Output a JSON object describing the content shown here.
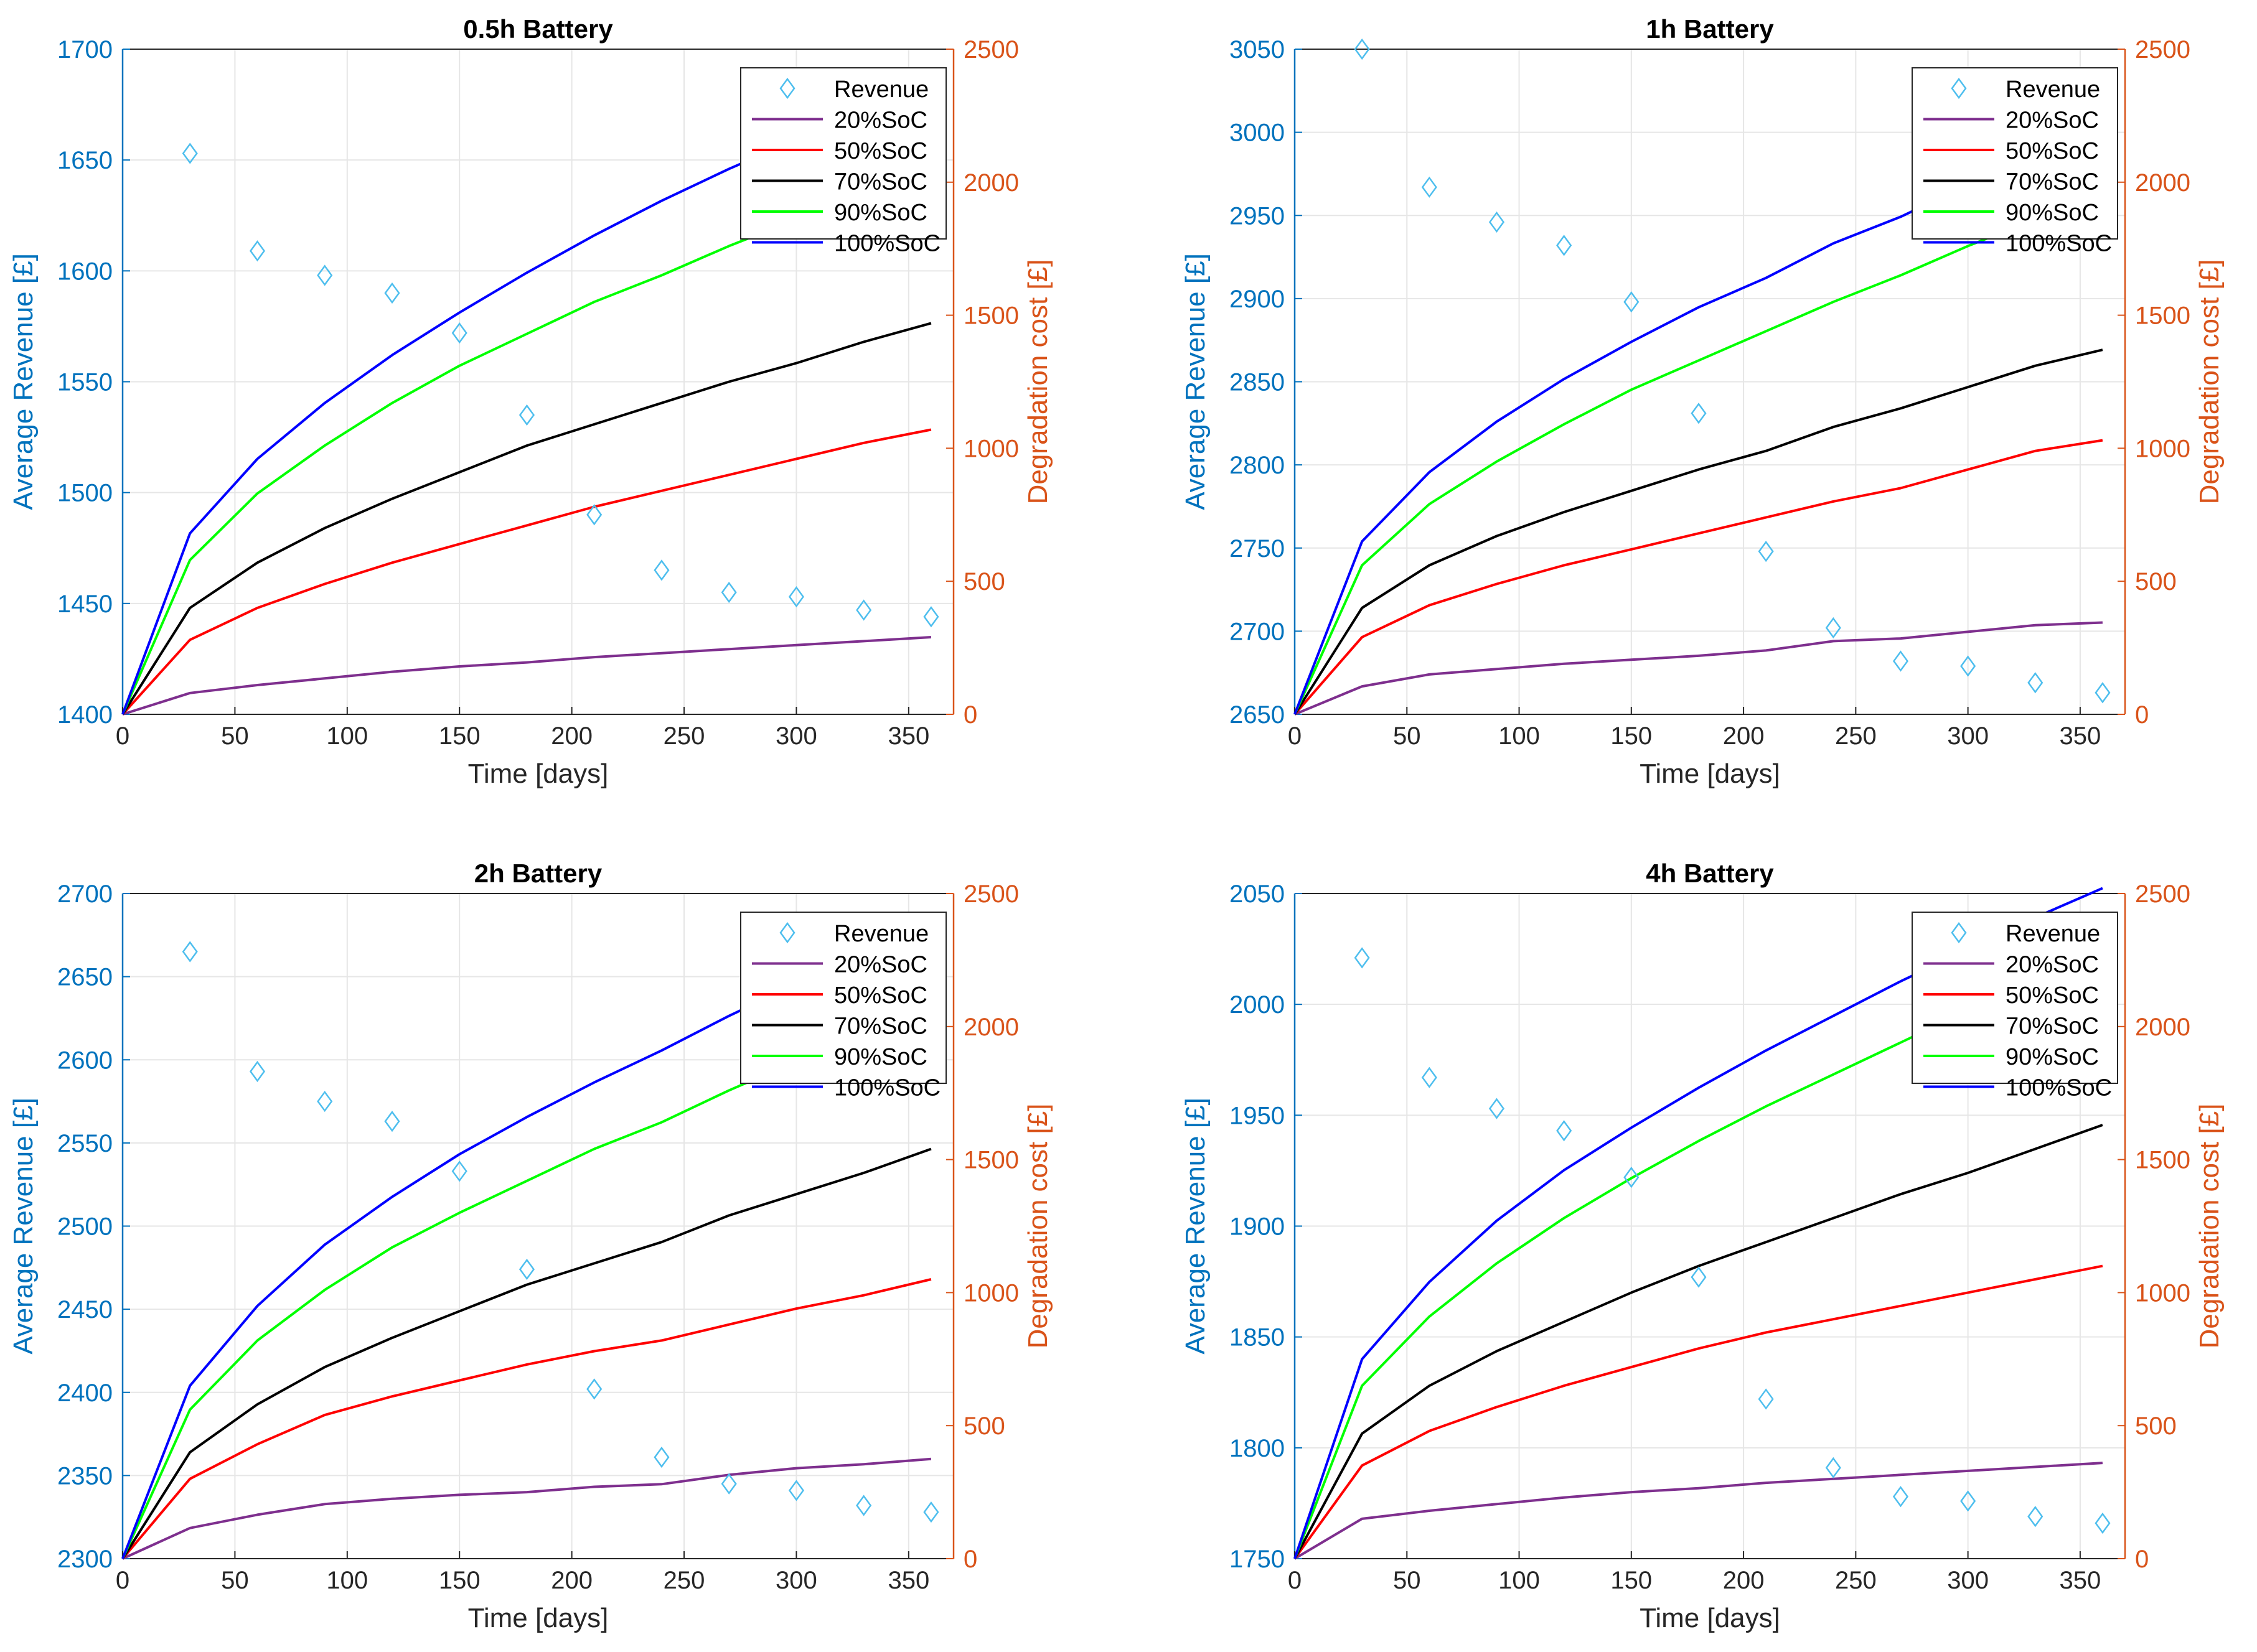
{
  "colors": {
    "left_axis": "#0072BD",
    "right_axis": "#D95319",
    "revenue_marker": "#4DBEEE",
    "grid": "#e6e6e6"
  },
  "chart_data": [
    {
      "type": "line",
      "title": "0.5h Battery",
      "xlabel": "Time [days]",
      "ylabel_left": "Average Revenue [£]",
      "ylabel_right": "Degradation cost [£]",
      "xlim": [
        0,
        370
      ],
      "xticks": [
        0,
        50,
        100,
        150,
        200,
        250,
        300,
        350
      ],
      "ylim_left": [
        1400,
        1700
      ],
      "yticks_left": [
        1400,
        1450,
        1500,
        1550,
        1600,
        1650,
        1700
      ],
      "ylim_right": [
        0,
        2500
      ],
      "yticks_right": [
        0,
        500,
        1000,
        1500,
        2000,
        2500
      ],
      "grid": true,
      "legend_position": "top-right",
      "revenue": {
        "name": "Revenue",
        "marker": "diamond-open",
        "x": [
          30,
          60,
          90,
          120,
          150,
          180,
          210,
          240,
          270,
          300,
          330,
          360
        ],
        "y": [
          1653,
          1609,
          1598,
          1590,
          1572,
          1535,
          1490,
          1465,
          1455,
          1453,
          1447,
          1444
        ]
      },
      "x": [
        0,
        30,
        60,
        90,
        120,
        150,
        180,
        210,
        240,
        270,
        300,
        330,
        360
      ],
      "series": [
        {
          "name": "20%SoC",
          "color": "#7E2F8E",
          "values": [
            0,
            80,
            110,
            135,
            160,
            180,
            195,
            215,
            230,
            245,
            260,
            275,
            290
          ]
        },
        {
          "name": "50%SoC",
          "color": "#FF0000",
          "values": [
            0,
            280,
            400,
            490,
            570,
            640,
            710,
            780,
            840,
            900,
            960,
            1020,
            1070
          ]
        },
        {
          "name": "70%SoC",
          "color": "#000000",
          "values": [
            0,
            400,
            570,
            700,
            810,
            910,
            1010,
            1090,
            1170,
            1250,
            1320,
            1400,
            1470
          ]
        },
        {
          "name": "90%SoC",
          "color": "#00FF00",
          "values": [
            0,
            580,
            830,
            1010,
            1170,
            1310,
            1430,
            1550,
            1650,
            1760,
            1860,
            1950,
            2040
          ]
        },
        {
          "name": "100%SoC",
          "color": "#0000FF",
          "values": [
            0,
            680,
            960,
            1170,
            1350,
            1510,
            1660,
            1800,
            1930,
            2050,
            2160,
            2270,
            2370
          ]
        }
      ]
    },
    {
      "type": "line",
      "title": "1h Battery",
      "xlabel": "Time [days]",
      "ylabel_left": "Average Revenue [£]",
      "ylabel_right": "Degradation cost [£]",
      "xlim": [
        0,
        370
      ],
      "xticks": [
        0,
        50,
        100,
        150,
        200,
        250,
        300,
        350
      ],
      "ylim_left": [
        2650,
        3050
      ],
      "yticks_left": [
        2650,
        2700,
        2750,
        2800,
        2850,
        2900,
        2950,
        3000,
        3050
      ],
      "ylim_right": [
        0,
        2500
      ],
      "yticks_right": [
        0,
        500,
        1000,
        1500,
        2000,
        2500
      ],
      "grid": true,
      "legend_position": "top-right",
      "revenue": {
        "name": "Revenue",
        "marker": "diamond-open",
        "x": [
          30,
          60,
          90,
          120,
          150,
          180,
          210,
          240,
          270,
          300,
          330,
          360
        ],
        "y": [
          3050,
          2967,
          2946,
          2932,
          2898,
          2831,
          2748,
          2702,
          2682,
          2679,
          2669,
          2663
        ]
      },
      "x": [
        0,
        30,
        60,
        90,
        120,
        150,
        180,
        210,
        240,
        270,
        300,
        330,
        360
      ],
      "series": [
        {
          "name": "20%SoC",
          "color": "#7E2F8E",
          "values": [
            0,
            105,
            150,
            170,
            190,
            205,
            220,
            240,
            275,
            285,
            310,
            335,
            345
          ]
        },
        {
          "name": "50%SoC",
          "color": "#FF0000",
          "values": [
            0,
            290,
            410,
            490,
            560,
            620,
            680,
            740,
            800,
            850,
            920,
            990,
            1030
          ]
        },
        {
          "name": "70%SoC",
          "color": "#000000",
          "values": [
            0,
            400,
            560,
            670,
            760,
            840,
            920,
            990,
            1080,
            1150,
            1230,
            1310,
            1370
          ]
        },
        {
          "name": "90%SoC",
          "color": "#00FF00",
          "values": [
            0,
            560,
            790,
            950,
            1090,
            1220,
            1330,
            1440,
            1550,
            1650,
            1760,
            1860,
            1950
          ]
        },
        {
          "name": "100%SoC",
          "color": "#0000FF",
          "values": [
            0,
            650,
            910,
            1100,
            1260,
            1400,
            1530,
            1640,
            1770,
            1870,
            1990,
            2100,
            2200
          ]
        }
      ]
    },
    {
      "type": "line",
      "title": "2h Battery",
      "xlabel": "Time [days]",
      "ylabel_left": "Average Revenue [£]",
      "ylabel_right": "Degradation cost [£]",
      "xlim": [
        0,
        370
      ],
      "xticks": [
        0,
        50,
        100,
        150,
        200,
        250,
        300,
        350
      ],
      "ylim_left": [
        2300,
        2700
      ],
      "yticks_left": [
        2300,
        2350,
        2400,
        2450,
        2500,
        2550,
        2600,
        2650,
        2700
      ],
      "ylim_right": [
        0,
        2500
      ],
      "yticks_right": [
        0,
        500,
        1000,
        1500,
        2000,
        2500
      ],
      "grid": true,
      "legend_position": "top-right",
      "revenue": {
        "name": "Revenue",
        "marker": "diamond-open",
        "x": [
          30,
          60,
          90,
          120,
          150,
          180,
          210,
          240,
          270,
          300,
          330,
          360
        ],
        "y": [
          2665,
          2593,
          2575,
          2563,
          2533,
          2474,
          2402,
          2361,
          2345,
          2341,
          2332,
          2328
        ]
      },
      "x": [
        0,
        30,
        60,
        90,
        120,
        150,
        180,
        210,
        240,
        270,
        300,
        330,
        360
      ],
      "series": [
        {
          "name": "20%SoC",
          "color": "#7E2F8E",
          "values": [
            0,
            115,
            165,
            205,
            225,
            240,
            250,
            270,
            280,
            315,
            340,
            355,
            375
          ]
        },
        {
          "name": "50%SoC",
          "color": "#FF0000",
          "values": [
            0,
            300,
            430,
            540,
            610,
            670,
            730,
            780,
            820,
            880,
            940,
            990,
            1050
          ]
        },
        {
          "name": "70%SoC",
          "color": "#000000",
          "values": [
            0,
            400,
            580,
            720,
            830,
            930,
            1030,
            1110,
            1190,
            1290,
            1370,
            1450,
            1540
          ]
        },
        {
          "name": "90%SoC",
          "color": "#00FF00",
          "values": [
            0,
            560,
            820,
            1010,
            1170,
            1300,
            1420,
            1540,
            1640,
            1760,
            1870,
            1970,
            2080
          ]
        },
        {
          "name": "100%SoC",
          "color": "#0000FF",
          "values": [
            0,
            650,
            950,
            1180,
            1360,
            1520,
            1660,
            1790,
            1910,
            2040,
            2160,
            2270,
            2380
          ]
        }
      ]
    },
    {
      "type": "line",
      "title": "4h Battery",
      "xlabel": "Time [days]",
      "ylabel_left": "Average Revenue [£]",
      "ylabel_right": "Degradation cost [£]",
      "xlim": [
        0,
        370
      ],
      "xticks": [
        0,
        50,
        100,
        150,
        200,
        250,
        300,
        350
      ],
      "ylim_left": [
        1750,
        2050
      ],
      "yticks_left": [
        1750,
        1800,
        1850,
        1900,
        1950,
        2000,
        2050
      ],
      "ylim_right": [
        0,
        2500
      ],
      "yticks_right": [
        0,
        500,
        1000,
        1500,
        2000,
        2500
      ],
      "grid": true,
      "legend_position": "top-right",
      "revenue": {
        "name": "Revenue",
        "marker": "diamond-open",
        "x": [
          30,
          60,
          90,
          120,
          150,
          180,
          210,
          240,
          270,
          300,
          330,
          360
        ],
        "y": [
          2021,
          1967,
          1953,
          1943,
          1922,
          1877,
          1822,
          1791,
          1778,
          1776,
          1769,
          1766
        ]
      },
      "x": [
        0,
        30,
        60,
        90,
        120,
        150,
        180,
        210,
        240,
        270,
        300,
        330,
        360
      ],
      "series": [
        {
          "name": "20%SoC",
          "color": "#7E2F8E",
          "values": [
            0,
            150,
            180,
            205,
            230,
            250,
            265,
            285,
            300,
            315,
            330,
            345,
            360
          ]
        },
        {
          "name": "50%SoC",
          "color": "#FF0000",
          "values": [
            0,
            350,
            480,
            570,
            650,
            720,
            790,
            850,
            900,
            950,
            1000,
            1050,
            1100
          ]
        },
        {
          "name": "70%SoC",
          "color": "#000000",
          "values": [
            0,
            470,
            650,
            780,
            890,
            1000,
            1100,
            1190,
            1280,
            1370,
            1450,
            1540,
            1630
          ]
        },
        {
          "name": "90%SoC",
          "color": "#00FF00",
          "values": [
            0,
            650,
            910,
            1110,
            1280,
            1430,
            1570,
            1700,
            1820,
            1940,
            2060,
            2170,
            2280
          ]
        },
        {
          "name": "100%SoC",
          "color": "#0000FF",
          "values": [
            0,
            750,
            1040,
            1270,
            1460,
            1620,
            1770,
            1910,
            2040,
            2170,
            2290,
            2410,
            2520
          ]
        }
      ]
    }
  ]
}
